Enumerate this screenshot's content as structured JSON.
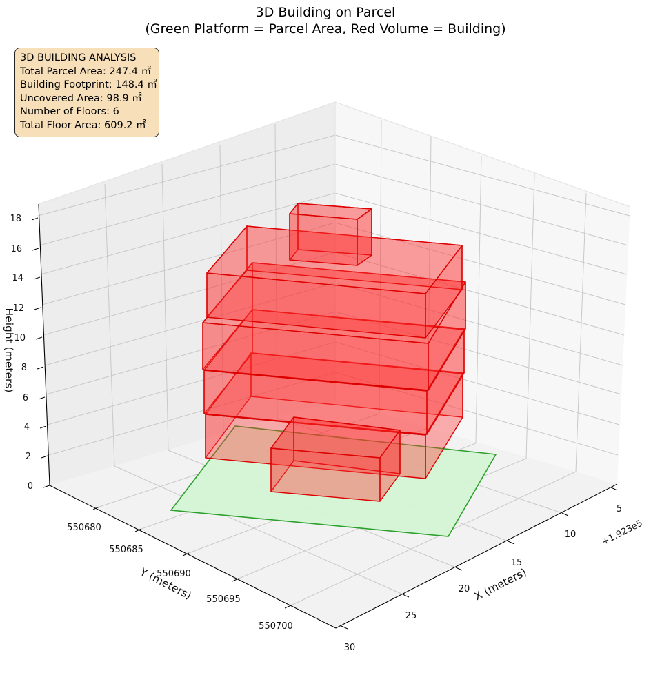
{
  "title": {
    "line1": "3D Building on Parcel",
    "line2": "(Green Platform = Parcel Area, Red Volume = Building)"
  },
  "info_box": {
    "heading": "3D BUILDING ANALYSIS",
    "lines": [
      "Total Parcel Area: 247.4 ㎡",
      "Building Footprint: 148.4 ㎡",
      "Uncovered Area: 98.9 ㎡",
      "Number of Floors: 6",
      "Total Floor Area: 609.2 ㎡"
    ]
  },
  "chart_data": {
    "type": "3d-boxes",
    "axes": {
      "x": {
        "label": "X (meters)",
        "ticks": [
          "5",
          "10",
          "15",
          "20",
          "25",
          "30"
        ],
        "offset": "+1.923e5"
      },
      "y": {
        "label": "Y (meters)",
        "ticks": [
          "550680",
          "550685",
          "550690",
          "550695",
          "550700"
        ]
      },
      "z": {
        "label": "Height (meters)",
        "ticks": [
          "0",
          "2",
          "4",
          "6",
          "8",
          "10",
          "12",
          "14",
          "16",
          "18"
        ]
      }
    },
    "grid": true,
    "colors": {
      "parcel_fill": "#d4f3d4",
      "parcel_edge": "#2ca02c",
      "building_fill": "#ff3030",
      "building_edge": "#dd0000"
    },
    "parcel": {
      "name": "Parcel Area"
    },
    "building": {
      "name": "Building",
      "floors": 6
    }
  }
}
